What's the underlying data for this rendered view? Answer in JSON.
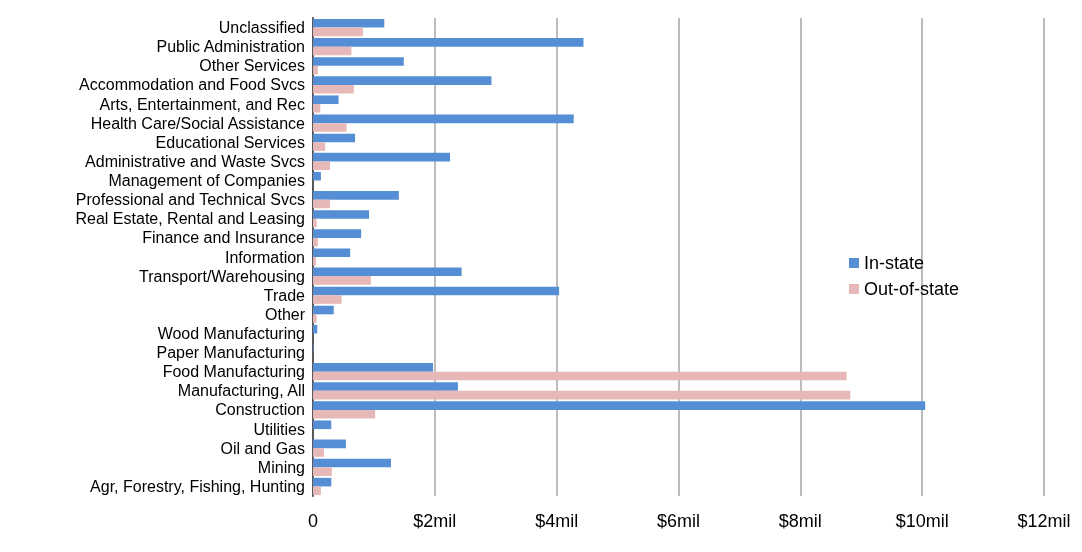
{
  "chart_data": {
    "type": "bar",
    "orientation": "horizontal",
    "categories": [
      "Unclassified",
      "Public Administration",
      "Other Services",
      "Accommodation and Food Svcs",
      "Arts, Entertainment, and Rec",
      "Health Care/Social Assistance",
      "Educational Services",
      "Administrative and Waste Svcs",
      "Management of Companies",
      "Professional and Technical Svcs",
      "Real Estate, Rental and Leasing",
      "Finance and Insurance",
      "Information",
      "Transport/Warehousing",
      "Trade",
      "Other",
      "Wood Manufacturing",
      "Paper Manufacturing",
      "Food Manufacturing",
      "Manufacturing, All",
      "Construction",
      "Utilities",
      "Oil and Gas",
      "Mining",
      "Agr, Forestry, Fishing, Hunting"
    ],
    "series": [
      {
        "name": "In-state",
        "color": "#558ed5",
        "values": [
          1.17,
          4.44,
          1.49,
          2.93,
          0.42,
          4.28,
          0.69,
          2.25,
          0.13,
          1.41,
          0.92,
          0.79,
          0.61,
          2.44,
          4.04,
          0.34,
          0.07,
          0.01,
          1.97,
          2.38,
          10.05,
          0.3,
          0.54,
          1.28,
          0.3
        ]
      },
      {
        "name": "Out-of-state",
        "color": "#e6b9b8",
        "values": [
          0.82,
          0.63,
          0.08,
          0.67,
          0.12,
          0.55,
          0.2,
          0.28,
          null,
          0.28,
          0.06,
          0.08,
          0.05,
          0.95,
          0.47,
          0.06,
          null,
          null,
          8.76,
          8.82,
          1.02,
          null,
          0.18,
          0.31,
          0.13
        ]
      }
    ],
    "xlim": [
      0,
      12
    ],
    "xticks": [
      0,
      {
        "value": 2,
        "label": "$2mil"
      },
      {
        "value": 4,
        "label": "$4mil"
      },
      {
        "value": 6,
        "label": "$6mil"
      },
      {
        "value": 8,
        "label": "$8mil"
      },
      {
        "value": 10,
        "label": "$10mil"
      },
      {
        "value": 12,
        "label": "$12mil"
      }
    ],
    "grid": "x",
    "legend": "right"
  }
}
